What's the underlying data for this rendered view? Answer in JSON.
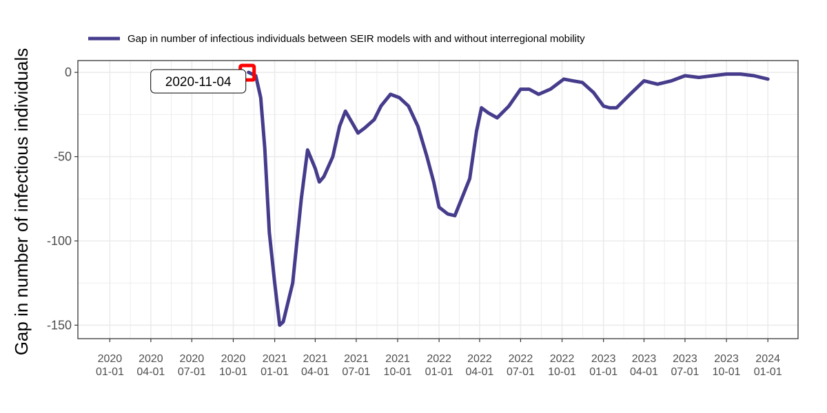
{
  "chart_data": {
    "type": "line",
    "title": "",
    "xlabel": "",
    "ylabel": "Gap in number of infectious individuals",
    "legend": {
      "position": "top",
      "entries": [
        "Gap in number of infectious individuals between SEIR models with and without interregional mobility"
      ]
    },
    "colors": {
      "series": "#463c8c",
      "highlight": "#ff0000",
      "grid": "#ebebeb",
      "axis": "#333333"
    },
    "grid": true,
    "xlim": [
      "2019-10-22",
      "2024-03-08"
    ],
    "ylim": [
      -158,
      7
    ],
    "x_ticks": [
      {
        "date": "2020-01-01",
        "year": "2020",
        "md": "01-01"
      },
      {
        "date": "2020-04-01",
        "year": "2020",
        "md": "04-01"
      },
      {
        "date": "2020-07-01",
        "year": "2020",
        "md": "07-01"
      },
      {
        "date": "2020-10-01",
        "year": "2020",
        "md": "10-01"
      },
      {
        "date": "2021-01-01",
        "year": "2021",
        "md": "01-01"
      },
      {
        "date": "2021-04-01",
        "year": "2021",
        "md": "04-01"
      },
      {
        "date": "2021-07-01",
        "year": "2021",
        "md": "07-01"
      },
      {
        "date": "2021-10-01",
        "year": "2021",
        "md": "10-01"
      },
      {
        "date": "2022-01-01",
        "year": "2022",
        "md": "01-01"
      },
      {
        "date": "2022-04-01",
        "year": "2022",
        "md": "04-01"
      },
      {
        "date": "2022-07-01",
        "year": "2022",
        "md": "07-01"
      },
      {
        "date": "2022-10-01",
        "year": "2022",
        "md": "10-01"
      },
      {
        "date": "2023-01-01",
        "year": "2023",
        "md": "01-01"
      },
      {
        "date": "2023-04-01",
        "year": "2023",
        "md": "04-01"
      },
      {
        "date": "2023-07-01",
        "year": "2023",
        "md": "07-01"
      },
      {
        "date": "2023-10-01",
        "year": "2023",
        "md": "10-01"
      },
      {
        "date": "2024-01-01",
        "year": "2024",
        "md": "01-01"
      }
    ],
    "y_ticks": [
      {
        "value": 0,
        "label": "0"
      },
      {
        "value": -50,
        "label": "-50"
      },
      {
        "value": -100,
        "label": "-100"
      },
      {
        "value": -150,
        "label": "-150"
      }
    ],
    "series": [
      {
        "name": "Gap in number of infectious individuals between SEIR models with and without interregional mobility",
        "points": [
          [
            "2020-11-04",
            0
          ],
          [
            "2020-11-20",
            -2
          ],
          [
            "2020-12-01",
            -15
          ],
          [
            "2020-12-10",
            -45
          ],
          [
            "2020-12-20",
            -95
          ],
          [
            "2021-01-01",
            -125
          ],
          [
            "2021-01-12",
            -150
          ],
          [
            "2021-01-20",
            -148
          ],
          [
            "2021-02-10",
            -125
          ],
          [
            "2021-03-01",
            -75
          ],
          [
            "2021-03-15",
            -46
          ],
          [
            "2021-04-01",
            -57
          ],
          [
            "2021-04-10",
            -65
          ],
          [
            "2021-04-20",
            -62
          ],
          [
            "2021-05-10",
            -50
          ],
          [
            "2021-05-25",
            -32
          ],
          [
            "2021-06-07",
            -23
          ],
          [
            "2021-06-20",
            -29
          ],
          [
            "2021-07-05",
            -36
          ],
          [
            "2021-07-20",
            -33
          ],
          [
            "2021-08-10",
            -28
          ],
          [
            "2021-08-25",
            -20
          ],
          [
            "2021-09-15",
            -13
          ],
          [
            "2021-10-05",
            -15
          ],
          [
            "2021-10-25",
            -20
          ],
          [
            "2021-11-15",
            -32
          ],
          [
            "2021-12-05",
            -50
          ],
          [
            "2021-12-20",
            -65
          ],
          [
            "2022-01-01",
            -80
          ],
          [
            "2022-01-20",
            -84
          ],
          [
            "2022-02-05",
            -85
          ],
          [
            "2022-03-10",
            -63
          ],
          [
            "2022-03-25",
            -35
          ],
          [
            "2022-04-05",
            -21
          ],
          [
            "2022-04-20",
            -24
          ],
          [
            "2022-05-10",
            -27
          ],
          [
            "2022-06-05",
            -20
          ],
          [
            "2022-07-01",
            -10
          ],
          [
            "2022-07-20",
            -10
          ],
          [
            "2022-08-10",
            -13
          ],
          [
            "2022-09-05",
            -10
          ],
          [
            "2022-10-05",
            -4
          ],
          [
            "2022-10-25",
            -5
          ],
          [
            "2022-11-15",
            -6
          ],
          [
            "2022-12-10",
            -12
          ],
          [
            "2023-01-01",
            -20
          ],
          [
            "2023-01-15",
            -21
          ],
          [
            "2023-01-30",
            -21
          ],
          [
            "2023-03-01",
            -13
          ],
          [
            "2023-04-01",
            -5
          ],
          [
            "2023-05-01",
            -7
          ],
          [
            "2023-06-01",
            -5
          ],
          [
            "2023-07-01",
            -2
          ],
          [
            "2023-08-01",
            -3
          ],
          [
            "2023-09-01",
            -2
          ],
          [
            "2023-10-01",
            -1
          ],
          [
            "2023-11-01",
            -1
          ],
          [
            "2023-12-01",
            -2
          ],
          [
            "2024-01-01",
            -4
          ]
        ]
      }
    ],
    "annotations": [
      {
        "label": "2020-11-04",
        "x": "2020-11-04",
        "y": 0
      }
    ]
  }
}
